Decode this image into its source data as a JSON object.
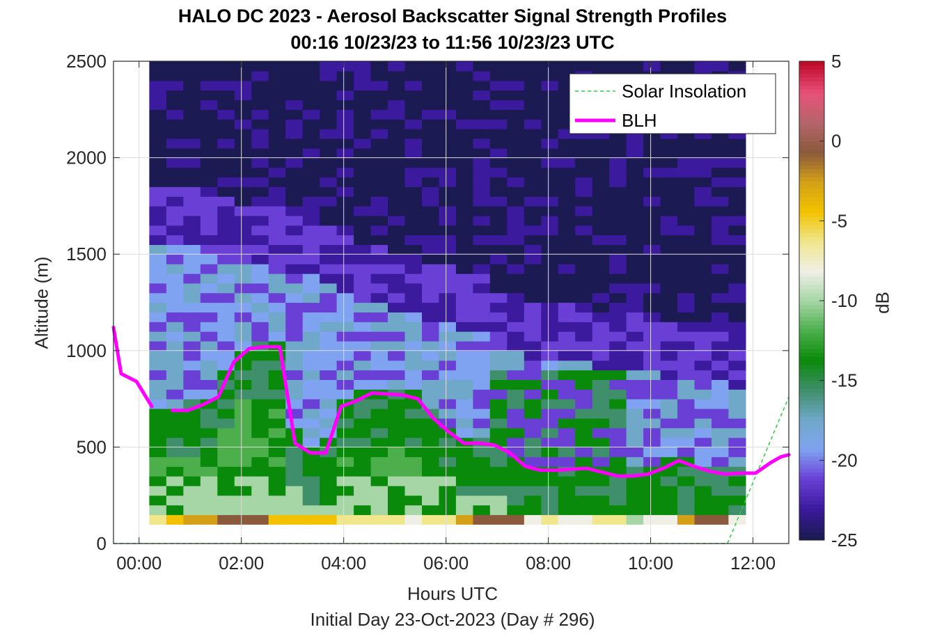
{
  "chart_data": {
    "type": "heatmap",
    "title": "HALO DC 2023 - Aerosol Backscatter Signal Strength Profiles",
    "subtitle": "00:16 10/23/23 to 11:56 10/23/23  UTC",
    "xlabel": "Hours UTC",
    "xlabel_sub": "Initial Day 23-Oct-2023 (Day # 296)",
    "ylabel": "Altitude (m)",
    "colorbar_label": "dB",
    "xlim": [
      -0.5,
      12.7
    ],
    "ylim": [
      0,
      2500
    ],
    "x_ticks": [
      0,
      2,
      4,
      6,
      8,
      10,
      12
    ],
    "x_tick_labels": [
      "00:00",
      "02:00",
      "04:00",
      "06:00",
      "08:00",
      "10:00",
      "12:00"
    ],
    "y_ticks": [
      0,
      500,
      1000,
      1500,
      2000,
      2500
    ],
    "y_tick_labels": [
      "0",
      "500",
      "1000",
      "1500",
      "2000",
      "2500"
    ],
    "colorbar_ticks": [
      5,
      0,
      -5,
      -10,
      -15,
      -20,
      -25
    ],
    "colorbar_tick_labels": [
      "5",
      "0",
      "-5",
      "-10",
      "-15",
      "-20",
      "-25"
    ],
    "clim": [
      -25,
      5
    ],
    "grid": true,
    "legend_position": "top-right",
    "heatmap": {
      "time_start": 0.2,
      "time_step": 0.333,
      "time_columns": 35,
      "alt_bottom": 100,
      "alt_top": 2500,
      "alt_step": 50,
      "colormap": [
        "#1b1a52",
        "#3b1a9e",
        "#6a3fd6",
        "#7fa3f0",
        "#6fa8c8",
        "#3f8f6a",
        "#0a8a0a",
        "#4caf4c",
        "#a6d6a6",
        "#efefe6",
        "#f0e68c",
        "#f2c200",
        "#d4a017",
        "#8b5a3c",
        "#b5656a",
        "#e8517a",
        "#c00a2a"
      ]
    },
    "series": [
      {
        "name": "Solar Insolation",
        "style": "dashed",
        "color": "#2ecc40",
        "x": [
          -0.5,
          11.5,
          12.7
        ],
        "y": [
          0,
          0,
          760
        ]
      },
      {
        "name": "BLH",
        "style": "solid",
        "color": "#ff00ff",
        "segments": [
          {
            "x": [
              -0.5,
              -0.35,
              -0.05,
              0.25
            ],
            "y": [
              1120,
              880,
              840,
              710
            ]
          },
          {
            "x": [
              0.65,
              0.95,
              1.25,
              1.55,
              1.85,
              2.15,
              2.45,
              2.75,
              3.05,
              3.35,
              3.65,
              3.95,
              4.25,
              4.55,
              4.85,
              5.15,
              5.45,
              5.75,
              6.05,
              6.35,
              6.65,
              6.95,
              7.25,
              7.55,
              7.85,
              8.15,
              8.45,
              8.75,
              9.05,
              9.35,
              9.65,
              9.95,
              10.25,
              10.55,
              10.85,
              11.15,
              11.45,
              11.75,
              12.05,
              12.35,
              12.55,
              12.7
            ],
            "y": [
              690,
              690,
              720,
              760,
              940,
              1010,
              1020,
              1020,
              520,
              470,
              470,
              710,
              740,
              780,
              775,
              770,
              750,
              650,
              580,
              520,
              520,
              510,
              470,
              400,
              380,
              380,
              385,
              390,
              370,
              350,
              350,
              360,
              390,
              430,
              400,
              375,
              360,
              365,
              365,
              420,
              450,
              460
            ]
          }
        ]
      }
    ],
    "legend": [
      "Solar Insolation",
      "BLH"
    ]
  }
}
